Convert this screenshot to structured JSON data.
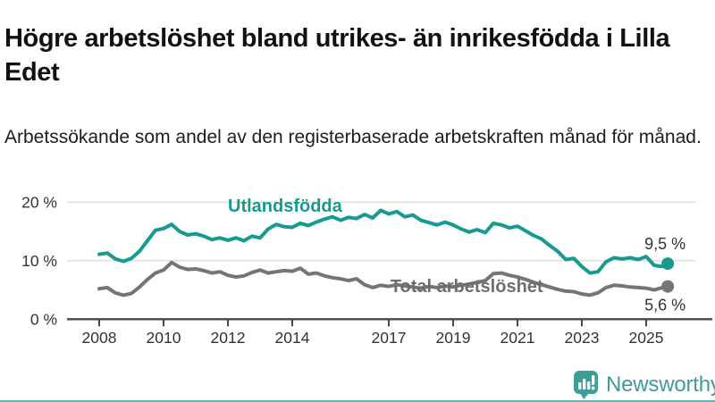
{
  "header": {
    "title": "Högre arbetslöshet bland utrikes- än inrikesfödda i Lilla Edet",
    "subtitle": "Arbetssökande som andel av den registerbaserade arbetskraften månad för månad."
  },
  "footer": {
    "brand": "Newsworthy",
    "logo_icon": "bar-chart-speech-bubble-icon"
  },
  "colors": {
    "foreign_born_line": "#169b8e",
    "total_line": "#757575",
    "total_label": "#6e6e6e",
    "axis_text": "#333333",
    "axis_line": "#484848",
    "gridline": "#dcdcdc",
    "title_text": "#111111",
    "brand_teal": "#3d9e94",
    "bottom_bar": "#169b8e"
  },
  "chart_data": {
    "type": "line",
    "xlabel": "",
    "ylabel": "",
    "grid": "horizontal",
    "xlim": [
      2007.0,
      2026.1
    ],
    "ylim": [
      0,
      22
    ],
    "yticks": [
      {
        "v": 0,
        "label": "0 %"
      },
      {
        "v": 10,
        "label": "10 %"
      },
      {
        "v": 20,
        "label": "20 %"
      }
    ],
    "xticks": [
      {
        "v": 2008,
        "label": "2008"
      },
      {
        "v": 2010,
        "label": "2010"
      },
      {
        "v": 2012,
        "label": "2012"
      },
      {
        "v": 2014,
        "label": "2014"
      },
      {
        "v": 2017,
        "label": "2017"
      },
      {
        "v": 2019,
        "label": "2019"
      },
      {
        "v": 2021,
        "label": "2021"
      },
      {
        "v": 2023,
        "label": "2023"
      },
      {
        "v": 2025,
        "label": "2025"
      }
    ],
    "x": [
      2008.0,
      2008.25,
      2008.5,
      2008.75,
      2009.0,
      2009.25,
      2009.5,
      2009.75,
      2010.0,
      2010.25,
      2010.5,
      2010.75,
      2011.0,
      2011.25,
      2011.5,
      2011.75,
      2012.0,
      2012.25,
      2012.5,
      2012.75,
      2013.0,
      2013.25,
      2013.5,
      2013.75,
      2014.0,
      2014.25,
      2014.5,
      2014.75,
      2015.0,
      2015.25,
      2015.5,
      2015.75,
      2016.0,
      2016.25,
      2016.5,
      2016.75,
      2017.0,
      2017.25,
      2017.5,
      2017.75,
      2018.0,
      2018.25,
      2018.5,
      2018.75,
      2019.0,
      2019.25,
      2019.5,
      2019.75,
      2020.0,
      2020.25,
      2020.5,
      2020.75,
      2021.0,
      2021.25,
      2021.5,
      2021.75,
      2022.0,
      2022.25,
      2022.5,
      2022.75,
      2023.0,
      2023.25,
      2023.5,
      2023.75,
      2024.0,
      2024.25,
      2024.5,
      2024.75,
      2025.0,
      2025.25,
      2025.5,
      2025.67
    ],
    "series": [
      {
        "name": "Utlandsfödda",
        "color": "#169b8e",
        "end_value_label": "9,5 %",
        "end_label_side": "above",
        "name_label_pos": {
          "x": 2012.0,
          "y": 18.4
        },
        "values": [
          11.1,
          11.3,
          10.3,
          9.9,
          10.4,
          11.6,
          13.4,
          15.2,
          15.5,
          16.2,
          15.0,
          14.4,
          14.6,
          14.2,
          13.6,
          13.9,
          13.5,
          13.9,
          13.4,
          14.2,
          13.9,
          15.4,
          16.2,
          15.8,
          15.7,
          16.4,
          16.0,
          16.6,
          17.1,
          17.5,
          16.9,
          17.4,
          17.2,
          17.9,
          17.3,
          18.6,
          18.0,
          18.4,
          17.5,
          17.8,
          16.9,
          16.5,
          16.1,
          16.6,
          16.1,
          15.4,
          14.9,
          15.3,
          14.8,
          16.4,
          16.1,
          15.6,
          15.9,
          15.1,
          14.3,
          13.7,
          12.6,
          11.6,
          10.2,
          10.4,
          9.0,
          7.9,
          8.1,
          9.8,
          10.5,
          10.3,
          10.5,
          10.2,
          10.7,
          9.2,
          9.0,
          9.5
        ]
      },
      {
        "name": "Total arbetslöshet",
        "color": "#757575",
        "end_value_label": "5,6 %",
        "end_label_side": "below",
        "name_label_pos": {
          "x": 2017.05,
          "y": 4.6
        },
        "values": [
          5.2,
          5.4,
          4.5,
          4.1,
          4.4,
          5.5,
          6.8,
          7.9,
          8.4,
          9.7,
          8.9,
          8.5,
          8.6,
          8.3,
          7.9,
          8.1,
          7.5,
          7.2,
          7.4,
          8.0,
          8.4,
          7.9,
          8.1,
          8.3,
          8.2,
          8.7,
          7.7,
          7.9,
          7.4,
          7.1,
          6.9,
          6.6,
          6.9,
          5.9,
          5.4,
          5.8,
          5.6,
          5.9,
          5.7,
          5.5,
          5.3,
          5.6,
          5.4,
          5.7,
          5.5,
          5.8,
          6.0,
          6.3,
          6.6,
          7.8,
          7.9,
          7.5,
          7.2,
          6.8,
          6.3,
          5.9,
          5.5,
          5.1,
          4.8,
          4.7,
          4.3,
          4.1,
          4.5,
          5.4,
          5.8,
          5.7,
          5.5,
          5.4,
          5.3,
          5.0,
          5.4,
          5.6
        ]
      }
    ]
  }
}
